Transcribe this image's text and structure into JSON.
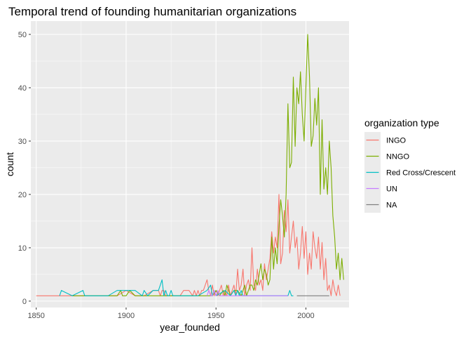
{
  "chart_data": {
    "type": "line",
    "title": "Temporal trend of founding humanitarian organizations",
    "xlabel": "year_founded",
    "ylabel": "count",
    "xlim": [
      1847,
      2024
    ],
    "ylim": [
      -1.2,
      52.5
    ],
    "xticks": [
      1850,
      1900,
      1950,
      2000
    ],
    "yticks": [
      0,
      10,
      20,
      30,
      40,
      50
    ],
    "grid": true,
    "legend": {
      "title": "organization type",
      "placement": "right"
    },
    "series": [
      {
        "name": "INGO",
        "color": "#F8766D",
        "x": [
          1850,
          1860,
          1870,
          1880,
          1890,
          1895,
          1900,
          1905,
          1910,
          1915,
          1918,
          1919,
          1920,
          1921,
          1922,
          1925,
          1928,
          1930,
          1932,
          1935,
          1937,
          1938,
          1939,
          1940,
          1941,
          1942,
          1943,
          1944,
          1945,
          1946,
          1947,
          1948,
          1949,
          1950,
          1951,
          1952,
          1953,
          1954,
          1955,
          1956,
          1957,
          1958,
          1959,
          1960,
          1961,
          1962,
          1963,
          1964,
          1965,
          1966,
          1967,
          1968,
          1969,
          1970,
          1971,
          1972,
          1973,
          1974,
          1975,
          1976,
          1977,
          1978,
          1979,
          1980,
          1981,
          1982,
          1983,
          1984,
          1985,
          1986,
          1987,
          1988,
          1989,
          1990,
          1991,
          1992,
          1993,
          1994,
          1995,
          1996,
          1997,
          1998,
          1999,
          2000,
          2001,
          2002,
          2003,
          2004,
          2005,
          2006,
          2007,
          2008,
          2009,
          2010,
          2011,
          2012,
          2013,
          2014,
          2015,
          2016,
          2017,
          2018,
          2019
        ],
        "y": [
          1,
          1,
          1,
          1,
          1,
          1,
          2,
          1,
          1,
          2,
          2,
          1,
          2,
          2,
          1,
          1,
          1,
          1,
          2,
          2,
          1,
          2,
          1,
          2,
          1,
          2,
          2,
          3,
          4,
          2,
          1,
          3,
          1,
          2,
          1,
          2,
          3,
          1,
          2,
          1,
          3,
          1,
          2,
          3,
          1,
          6,
          2,
          3,
          6,
          1,
          3,
          4,
          2,
          10,
          3,
          2,
          6,
          3,
          4,
          2,
          7,
          4,
          6,
          8,
          13,
          9,
          12,
          10,
          20,
          7,
          9,
          17,
          13,
          19,
          9,
          12,
          15,
          10,
          12,
          6,
          9,
          14,
          8,
          13,
          5,
          9,
          6,
          13,
          10,
          8,
          12,
          6,
          11,
          4,
          8,
          2,
          3,
          1,
          4,
          2,
          1,
          3,
          1
        ]
      },
      {
        "name": "NNGO",
        "color": "#7CAE00",
        "x": [
          1870,
          1880,
          1890,
          1895,
          1897,
          1898,
          1900,
          1902,
          1905,
          1910,
          1915,
          1920,
          1925,
          1930,
          1935,
          1940,
          1945,
          1948,
          1950,
          1952,
          1954,
          1955,
          1956,
          1957,
          1958,
          1960,
          1962,
          1964,
          1965,
          1966,
          1967,
          1968,
          1969,
          1970,
          1971,
          1972,
          1973,
          1974,
          1975,
          1976,
          1977,
          1978,
          1979,
          1980,
          1981,
          1982,
          1983,
          1984,
          1985,
          1986,
          1987,
          1988,
          1989,
          1990,
          1991,
          1992,
          1993,
          1994,
          1995,
          1996,
          1997,
          1998,
          1999,
          2000,
          2001,
          2002,
          2003,
          2004,
          2005,
          2006,
          2007,
          2008,
          2009,
          2010,
          2011,
          2012,
          2013,
          2014,
          2015,
          2016,
          2017,
          2018,
          2019,
          2020,
          2021
        ],
        "y": [
          1,
          1,
          1,
          1,
          2,
          1,
          1,
          2,
          1,
          1,
          1,
          1,
          1,
          1,
          1,
          1,
          1,
          1,
          2,
          1,
          2,
          1,
          3,
          2,
          1,
          2,
          2,
          1,
          2,
          3,
          1,
          2,
          3,
          3,
          2,
          4,
          3,
          5,
          7,
          4,
          6,
          5,
          3,
          4,
          12,
          6,
          10,
          7,
          14,
          19,
          16,
          12,
          20,
          37,
          25,
          26,
          42,
          29,
          40,
          37,
          43,
          35,
          30,
          40,
          50,
          42,
          29,
          31,
          38,
          33,
          40,
          20,
          34,
          21,
          25,
          20,
          30,
          25,
          16,
          12,
          6,
          9,
          4,
          8,
          4
        ]
      },
      {
        "name": "Red Cross/Crescent",
        "color": "#00BFC4",
        "x": [
          1863,
          1864,
          1870,
          1876,
          1877,
          1880,
          1885,
          1890,
          1895,
          1900,
          1905,
          1909,
          1910,
          1912,
          1915,
          1918,
          1919,
          1920,
          1921,
          1922,
          1923,
          1924,
          1925,
          1926,
          1930,
          1935,
          1940,
          1945,
          1947,
          1948,
          1949,
          1950,
          1955,
          1958,
          1960,
          1961,
          1962,
          1963,
          1964,
          1965,
          1970,
          1975,
          1980,
          1985,
          1990,
          1991,
          1992,
          1993
        ],
        "y": [
          1,
          2,
          1,
          2,
          1,
          1,
          1,
          1,
          2,
          2,
          2,
          1,
          2,
          1,
          2,
          2,
          3,
          4,
          1,
          2,
          1,
          1,
          2,
          1,
          1,
          1,
          1,
          2,
          3,
          1,
          2,
          1,
          2,
          1,
          2,
          1,
          2,
          1,
          2,
          1,
          1,
          1,
          1,
          1,
          1,
          2,
          1,
          1
        ]
      },
      {
        "name": "UN",
        "color": "#C77CFF",
        "x": [
          1945,
          1946,
          1947,
          1948,
          1949,
          1950,
          1951,
          1952,
          1955,
          1960,
          1965,
          1970,
          1975,
          1980,
          1985,
          1990
        ],
        "y": [
          1,
          2,
          1,
          1,
          2,
          1,
          2,
          1,
          1,
          1,
          1,
          1,
          1,
          1,
          1,
          1
        ]
      },
      {
        "name": "NA",
        "color": "#7F7F7F",
        "x": [
          1995,
          2000,
          2005,
          2013
        ],
        "y": [
          1,
          1,
          1,
          1
        ]
      }
    ]
  }
}
